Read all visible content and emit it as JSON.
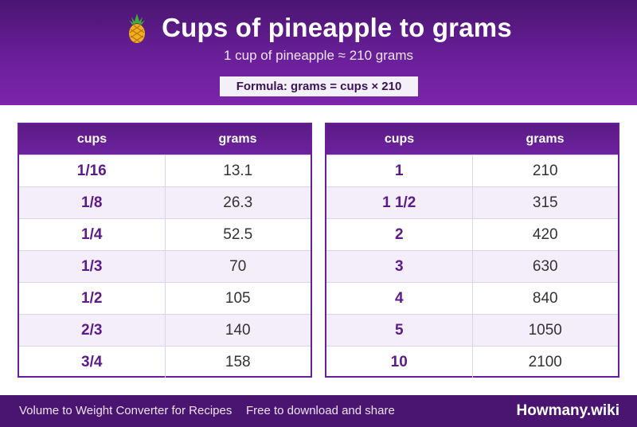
{
  "header": {
    "icon": "pineapple-icon",
    "title": "Cups of pineapple to grams",
    "subtitle": "1 cup of pineapple ≈ 210 grams",
    "formula": "Formula: grams = cups × 210"
  },
  "tables": [
    {
      "columns": [
        "cups",
        "grams"
      ],
      "rows": [
        {
          "cups": "1/16",
          "grams": "13.1"
        },
        {
          "cups": "1/8",
          "grams": "26.3"
        },
        {
          "cups": "1/4",
          "grams": "52.5"
        },
        {
          "cups": "1/3",
          "grams": "70"
        },
        {
          "cups": "1/2",
          "grams": "105"
        },
        {
          "cups": "2/3",
          "grams": "140"
        },
        {
          "cups": "3/4",
          "grams": "158"
        }
      ]
    },
    {
      "columns": [
        "cups",
        "grams"
      ],
      "rows": [
        {
          "cups": "1",
          "grams": "210"
        },
        {
          "cups": "1 1/2",
          "grams": "315"
        },
        {
          "cups": "2",
          "grams": "420"
        },
        {
          "cups": "3",
          "grams": "630"
        },
        {
          "cups": "4",
          "grams": "840"
        },
        {
          "cups": "5",
          "grams": "1050"
        },
        {
          "cups": "10",
          "grams": "2100"
        }
      ]
    }
  ],
  "footer": {
    "left": "Volume to Weight Converter for Recipes",
    "middle": "Free to download and share",
    "brand": "Howmany.wiki"
  },
  "colors": {
    "header_purple": "#6a1f9a",
    "footer_purple": "#4a1570",
    "cups_text": "#5c1a8a",
    "alt_row": "#f3eefa"
  }
}
